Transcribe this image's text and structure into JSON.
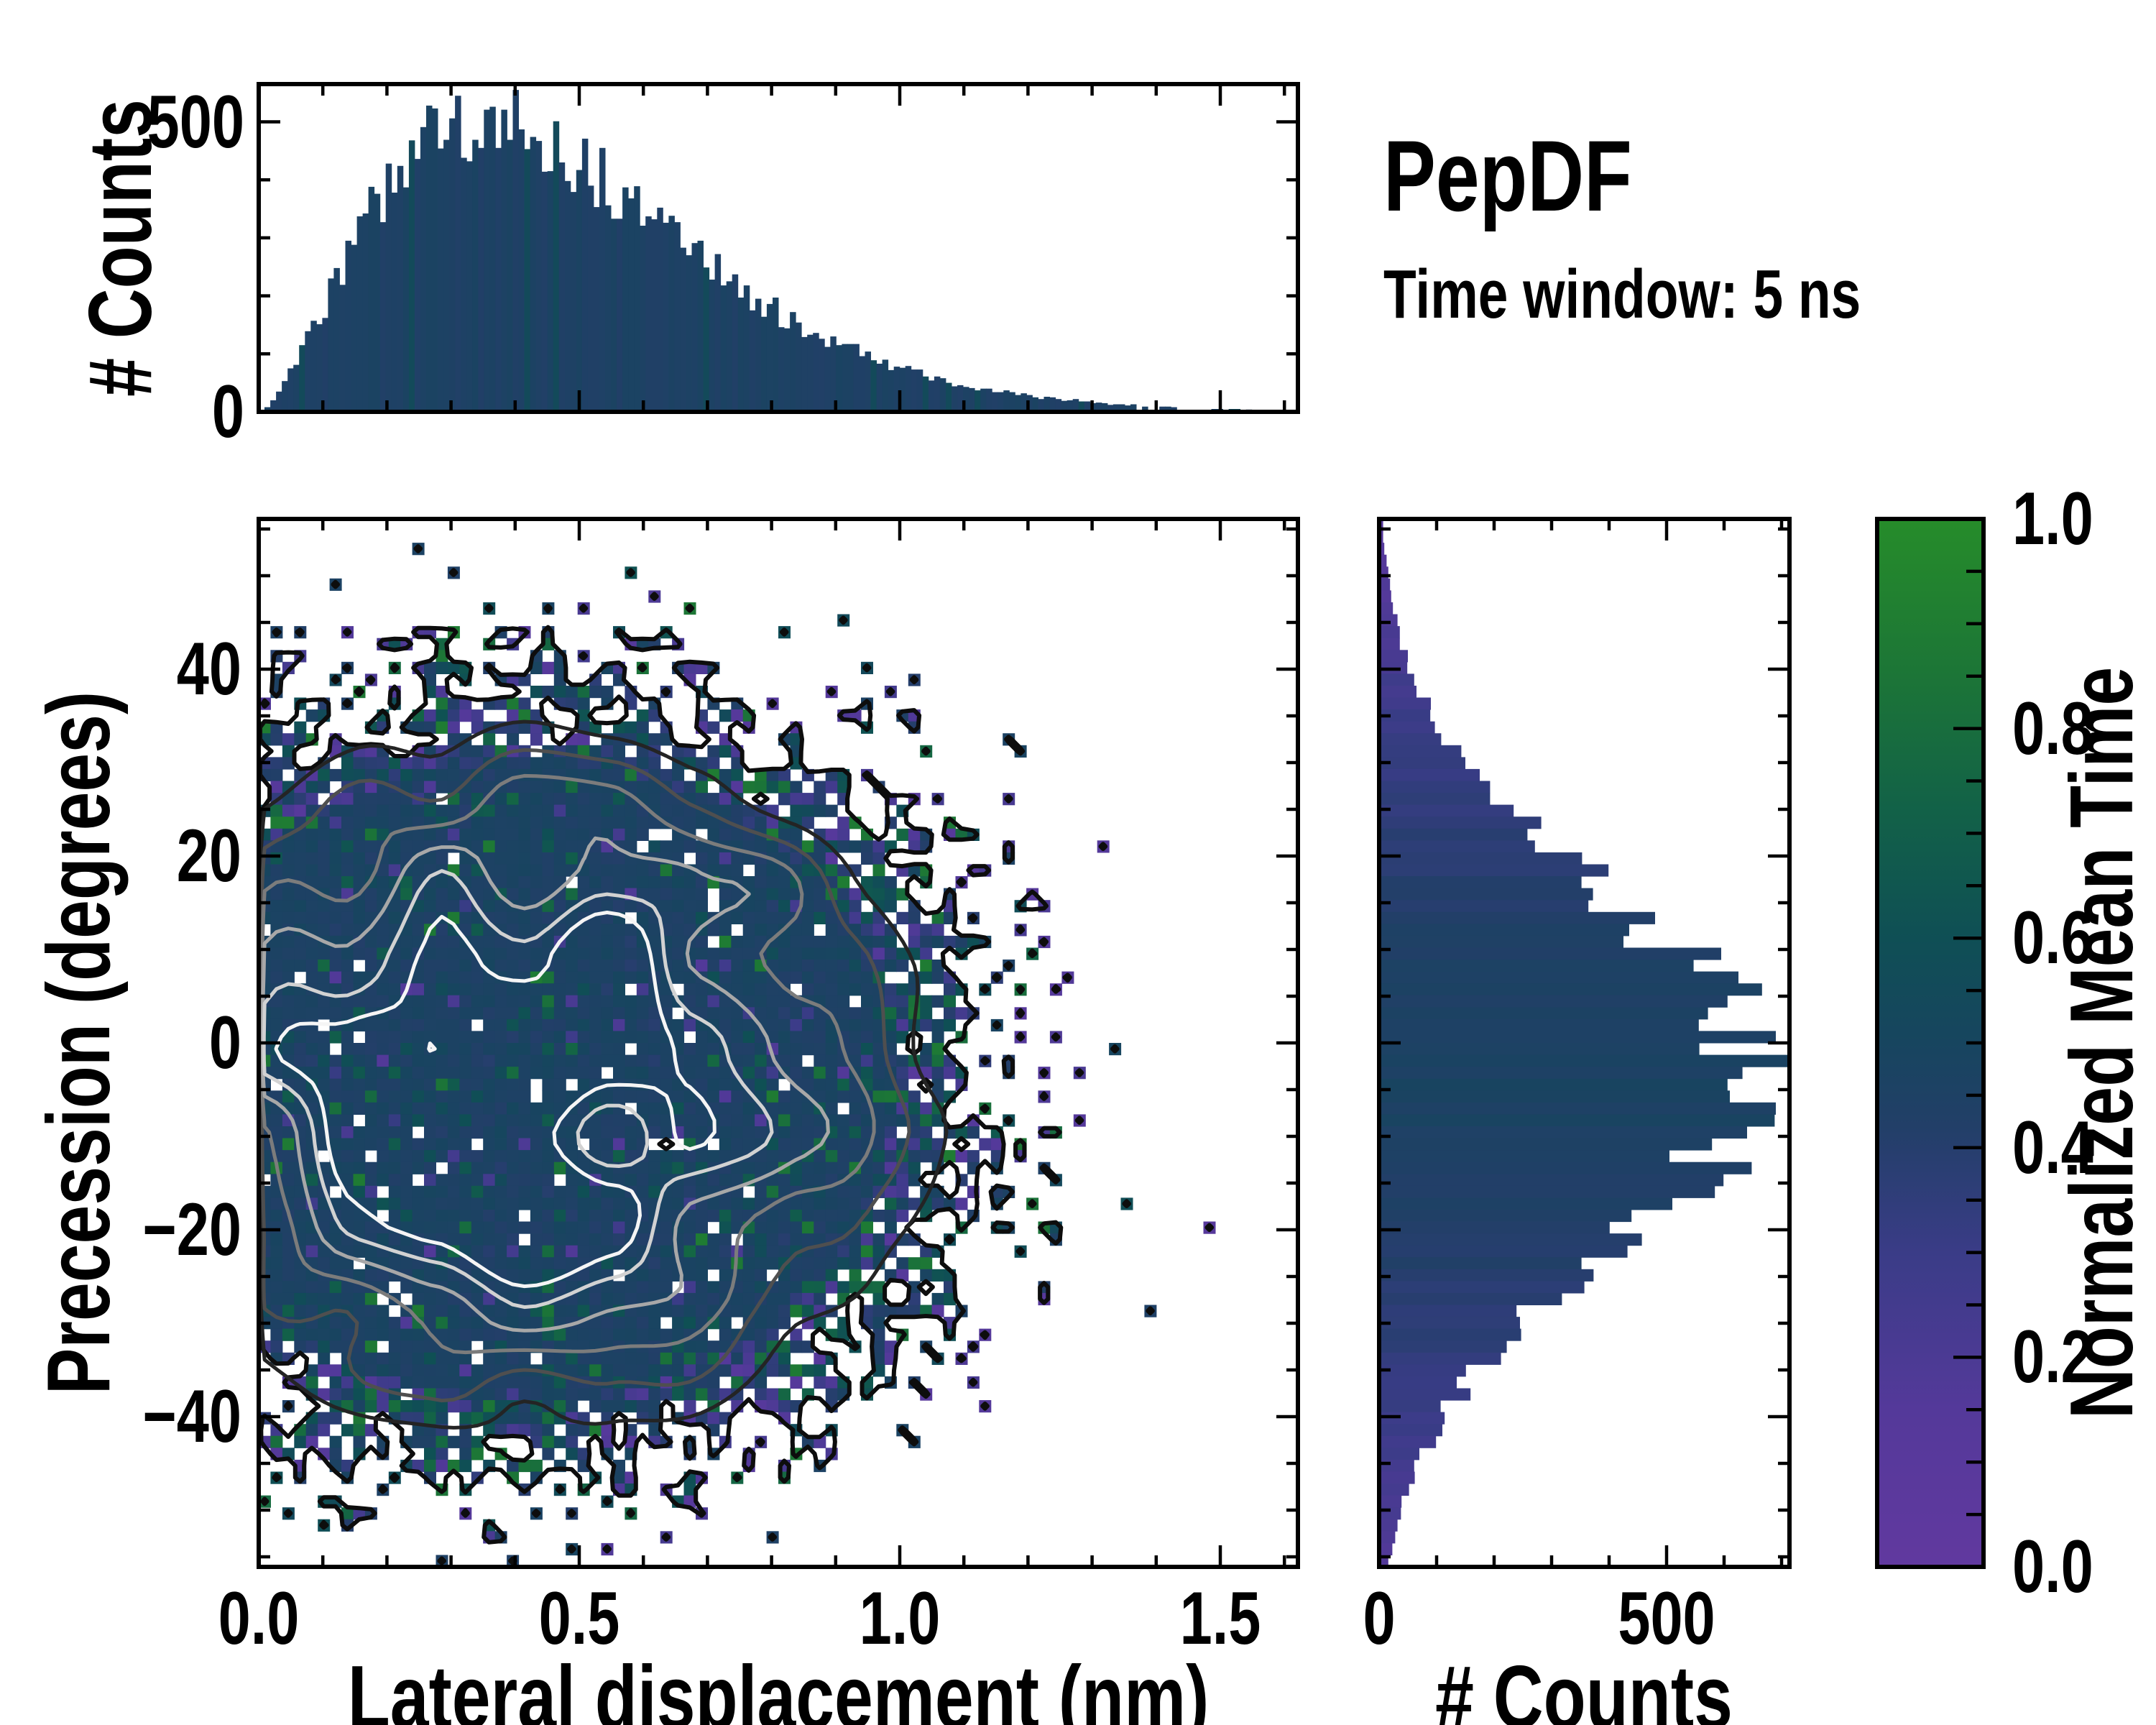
{
  "header": {
    "title": "PepDF",
    "subtitle": "Time window: 5 ns"
  },
  "colorbar": {
    "label": "Normalized Mean Time",
    "tick_labels": [
      "1.0",
      "0.8",
      "0.6",
      "0.4",
      "0.2",
      "0.0"
    ],
    "tick_values": [
      1.0,
      0.8,
      0.6,
      0.4,
      0.2,
      0.0
    ],
    "minor_tick_step": 0.05,
    "range": [
      0,
      1
    ],
    "colormap_stops": [
      [
        0.0,
        "#61399f"
      ],
      [
        0.15,
        "#54399a"
      ],
      [
        0.3,
        "#3a3c87"
      ],
      [
        0.42,
        "#223f68"
      ],
      [
        0.5,
        "#17455f"
      ],
      [
        0.6,
        "#0f4f55"
      ],
      [
        0.72,
        "#126148"
      ],
      [
        0.85,
        "#1c7537"
      ],
      [
        1.0,
        "#268c2a"
      ]
    ]
  },
  "chart_data": [
    {
      "type": "bar",
      "id": "top_histogram",
      "ylabel": "# Counts",
      "y_tick_labels": [
        "500",
        "0"
      ],
      "y_tick_values": [
        500,
        0
      ],
      "y_minor_step": 100,
      "y_range": [
        0,
        565
      ],
      "x_range": [
        0,
        1.62
      ],
      "x_minor_step": 0.1,
      "x_major_step": 0.5,
      "bins": 180,
      "bar_base_value": 0.45,
      "peak_counts": 500,
      "shape": {
        "form": "x^a*exp(-(x/b)^c)",
        "a": 1.6,
        "b": 0.3,
        "c": 1.3,
        "noise": 0.14,
        "seed": 3
      }
    },
    {
      "type": "heatmap",
      "id": "joint_distribution",
      "xlabel": "Lateral displacement (nm)",
      "ylabel": "Precession (degrees)",
      "x_range": [
        0,
        1.62
      ],
      "y_range": [
        -56,
        56
      ],
      "x_tick_labels": [
        "0.0",
        "0.5",
        "1.0",
        "1.5"
      ],
      "x_tick_values": [
        0,
        0.5,
        1.0,
        1.5
      ],
      "x_minor_step": 0.1,
      "y_tick_labels": [
        "40",
        "20",
        "0",
        "−20",
        "−40"
      ],
      "y_tick_values": [
        40,
        20,
        0,
        -20,
        -40
      ],
      "y_minor_step": 5,
      "grid": {
        "nx": 88,
        "ny": 88
      },
      "color_quantity": "Normalized Mean Time",
      "density_model": {
        "center_x": 0.42,
        "center_y": -4,
        "radius_x": 0.55,
        "radius_y": 33,
        "falloff_exp": 3.5,
        "falloff_scale": 0.7,
        "fill_gain": 2.2,
        "hole_fraction": 0.035,
        "seed": 7
      },
      "value_model": {
        "core_mean": 0.46,
        "core_sd": 0.07,
        "sparse_purple": 0.18,
        "sparse_teal": 0.58,
        "sparse_green": 0.82,
        "mid_blue": 0.42
      },
      "contours": {
        "occupancy_level": 0.35,
        "occupancy_color": "#0d0d0d",
        "occupancy_width": 6,
        "levels": [
          0.34,
          0.48,
          0.62,
          0.76,
          0.88,
          0.97
        ],
        "colors": [
          "#242424",
          "#4f4f4f",
          "#7c7c7c",
          "#a8a8a8",
          "#d2d2d2",
          "#f5f5f5"
        ],
        "width": 5,
        "noise_amp": 0.55,
        "noise_base": 0.75,
        "seed": 11
      }
    },
    {
      "type": "bar",
      "id": "right_histogram",
      "orientation": "horizontal",
      "xlabel": "# Counts",
      "x_tick_labels": [
        "0",
        "500"
      ],
      "x_tick_values": [
        0,
        500
      ],
      "x_minor_step": 100,
      "x_range": [
        0,
        714
      ],
      "y_range": [
        -56,
        56
      ],
      "y_minor_step": 5,
      "bins": 88,
      "peak_counts": 650,
      "shape": {
        "form": "gauss",
        "mean": -3.5,
        "sigma": 19.5,
        "noise": 0.16,
        "seed": 5
      }
    }
  ]
}
